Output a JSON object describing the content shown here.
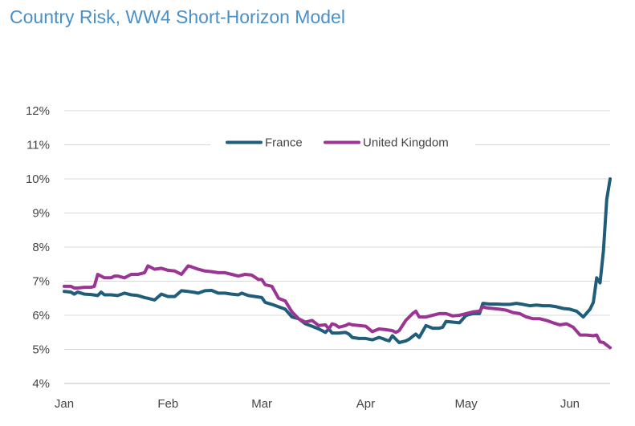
{
  "chart_data": {
    "type": "line",
    "title": "Country Risk, WW4 Short-Horizon Model",
    "xlabel": "",
    "ylabel": "",
    "ylim": [
      4,
      12
    ],
    "ytick_values": [
      4,
      5,
      6,
      7,
      8,
      9,
      10,
      11,
      12
    ],
    "ytick_labels": [
      "4%",
      "5%",
      "6%",
      "7%",
      "8%",
      "9%",
      "10%",
      "11%",
      "12%"
    ],
    "xlim": [
      0,
      163
    ],
    "xtick_values": [
      0,
      31,
      59,
      90,
      120,
      151
    ],
    "xtick_labels": [
      "Jan",
      "Feb",
      "Mar",
      "Apr",
      "May",
      "Jun"
    ],
    "grid": true,
    "legend_position": "top-center",
    "series": [
      {
        "name": "France",
        "color": "#1f5d7a",
        "x": [
          0,
          2,
          3,
          4,
          6,
          8,
          10,
          11,
          12,
          14,
          16,
          18,
          20,
          22,
          24,
          25,
          27,
          29,
          31,
          33,
          35,
          37,
          39,
          40,
          42,
          44,
          46,
          48,
          50,
          52,
          53,
          55,
          57,
          59,
          60,
          62,
          64,
          66,
          68,
          70,
          72,
          74,
          76,
          78,
          79,
          80,
          82,
          84,
          85,
          86,
          88,
          90,
          92,
          94,
          95,
          96,
          97,
          98,
          100,
          102,
          103,
          104,
          105,
          106,
          108,
          110,
          112,
          113,
          114,
          116,
          118,
          120,
          122,
          124,
          125,
          127,
          129,
          131,
          133,
          135,
          137,
          139,
          141,
          143,
          145,
          147,
          149,
          151,
          153,
          155,
          157,
          158,
          159,
          160,
          161,
          162,
          163
        ],
        "y": [
          6.7,
          6.68,
          6.62,
          6.68,
          6.62,
          6.61,
          6.58,
          6.68,
          6.6,
          6.6,
          6.58,
          6.65,
          6.6,
          6.58,
          6.52,
          6.5,
          6.45,
          6.62,
          6.55,
          6.55,
          6.72,
          6.7,
          6.67,
          6.65,
          6.72,
          6.73,
          6.65,
          6.65,
          6.62,
          6.6,
          6.65,
          6.58,
          6.55,
          6.52,
          6.38,
          6.32,
          6.25,
          6.18,
          5.95,
          5.9,
          5.75,
          5.68,
          5.6,
          5.5,
          5.6,
          5.48,
          5.48,
          5.5,
          5.45,
          5.35,
          5.32,
          5.32,
          5.28,
          5.35,
          5.32,
          5.28,
          5.25,
          5.4,
          5.2,
          5.25,
          5.3,
          5.38,
          5.45,
          5.35,
          5.7,
          5.62,
          5.62,
          5.65,
          5.82,
          5.8,
          5.78,
          6.0,
          6.05,
          6.05,
          6.35,
          6.33,
          6.33,
          6.32,
          6.32,
          6.35,
          6.32,
          6.28,
          6.3,
          6.28,
          6.28,
          6.25,
          6.2,
          6.18,
          6.12,
          5.95,
          6.18,
          6.38,
          7.1,
          6.95,
          7.9,
          9.4,
          10.0
        ],
        "end_label": ""
      },
      {
        "name": "United Kingdom",
        "color": "#9b3594",
        "x": [
          0,
          2,
          3,
          4,
          6,
          8,
          9,
          10,
          12,
          14,
          15,
          16,
          18,
          20,
          22,
          24,
          25,
          27,
          29,
          31,
          33,
          35,
          37,
          38,
          40,
          42,
          44,
          46,
          48,
          50,
          52,
          54,
          56,
          58,
          59,
          60,
          62,
          64,
          66,
          68,
          70,
          72,
          74,
          76,
          78,
          79,
          80,
          81,
          82,
          84,
          85,
          86,
          88,
          90,
          92,
          94,
          96,
          98,
          99,
          100,
          102,
          104,
          105,
          106,
          108,
          110,
          112,
          114,
          116,
          118,
          120,
          122,
          124,
          125,
          126,
          128,
          130,
          132,
          134,
          136,
          138,
          140,
          142,
          144,
          146,
          148,
          150,
          152,
          154,
          156,
          158,
          159,
          160,
          161,
          163
        ],
        "y": [
          6.85,
          6.85,
          6.8,
          6.8,
          6.82,
          6.82,
          6.85,
          7.2,
          7.1,
          7.1,
          7.15,
          7.15,
          7.1,
          7.2,
          7.2,
          7.25,
          7.45,
          7.35,
          7.38,
          7.32,
          7.3,
          7.2,
          7.45,
          7.42,
          7.35,
          7.3,
          7.28,
          7.25,
          7.25,
          7.2,
          7.15,
          7.2,
          7.18,
          7.05,
          7.05,
          6.9,
          6.85,
          6.5,
          6.42,
          6.1,
          5.9,
          5.8,
          5.85,
          5.7,
          5.72,
          5.6,
          5.75,
          5.72,
          5.65,
          5.7,
          5.75,
          5.72,
          5.7,
          5.68,
          5.52,
          5.6,
          5.58,
          5.55,
          5.5,
          5.55,
          5.85,
          6.05,
          6.12,
          5.95,
          5.95,
          6.0,
          6.05,
          6.05,
          5.98,
          6.0,
          6.05,
          6.1,
          6.12,
          6.25,
          6.22,
          6.2,
          6.18,
          6.15,
          6.08,
          6.05,
          5.95,
          5.9,
          5.9,
          5.85,
          5.78,
          5.72,
          5.75,
          5.65,
          5.42,
          5.42,
          5.4,
          5.42,
          5.22,
          5.2,
          5.05
        ],
        "end_label": ""
      }
    ]
  }
}
